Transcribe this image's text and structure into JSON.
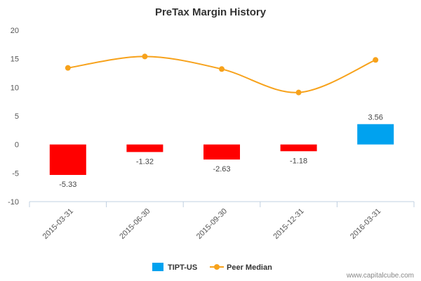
{
  "chart_data": {
    "type": "bar",
    "title": "PreTax Margin History",
    "categories": [
      "2015-03-31",
      "2015-06-30",
      "2015-09-30",
      "2015-12-31",
      "2016-03-31"
    ],
    "series": [
      {
        "name": "TIPT-US",
        "type": "bar",
        "values": [
          -5.33,
          -1.32,
          -2.63,
          -1.18,
          3.56
        ],
        "data_labels": [
          "-5.33",
          "-1.32",
          "-2.63",
          "-1.18",
          "3.56"
        ],
        "color_negative": "#ff0000",
        "color_positive": "#00a2ef"
      },
      {
        "name": "Peer Median",
        "type": "line",
        "values": [
          13.4,
          15.4,
          13.2,
          9.1,
          14.8
        ],
        "color": "#f7a21b"
      }
    ],
    "ylim": [
      -10,
      20
    ],
    "yticks": [
      -10,
      -5,
      0,
      5,
      10,
      15,
      20
    ],
    "legend": "bottom-center",
    "grid": false,
    "credit": "www.capitalcube.com"
  }
}
